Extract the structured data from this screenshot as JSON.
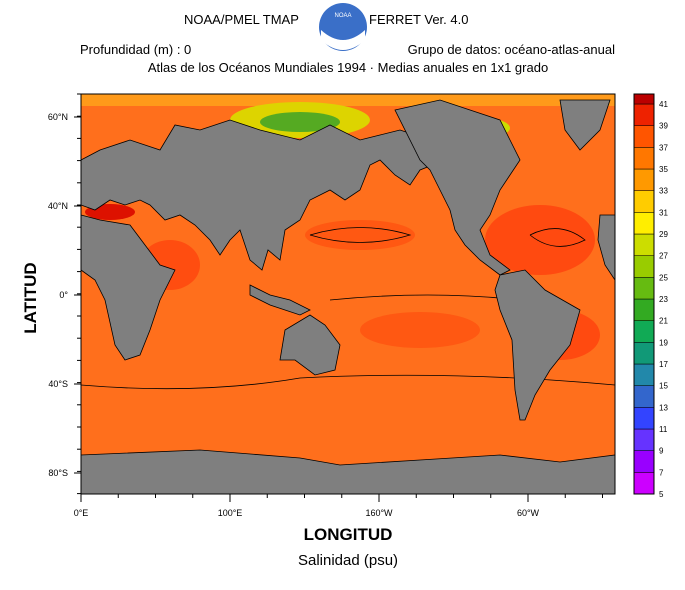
{
  "header": {
    "left": "NOAA/PMEL TMAP",
    "logo": "NOAA",
    "right": "FERRET Ver. 4.0",
    "depth": "Profundidad (m) : 0",
    "dataset": "Grupo de datos:  océano-atlas-anual",
    "subtitle": "Atlas de los Océanos Mundiales 1994 · Medias anuales en 1x1 grado"
  },
  "map": {
    "y_label": "LATITUD",
    "x_label": "LONGITUD",
    "variable": "Salinidad (psu)",
    "lat_ticks": [
      "60°N",
      "40°N",
      "0°",
      "40°S",
      "80°S"
    ],
    "lon_ticks": [
      "0°E",
      "100°E",
      "160°W",
      "60°W"
    ]
  },
  "colorbar": {
    "levels": [
      5,
      7,
      9,
      11,
      13,
      15,
      17,
      19,
      21,
      23,
      25,
      27,
      29,
      31,
      33,
      35,
      37,
      39,
      41
    ],
    "colors": [
      "#cc00ff",
      "#9900ff",
      "#6633ff",
      "#3344ff",
      "#3366cc",
      "#2288aa",
      "#119977",
      "#11aa55",
      "#33aa22",
      "#66bb11",
      "#99cc00",
      "#ccdd00",
      "#ffee00",
      "#ffcc00",
      "#ff9900",
      "#ff7700",
      "#ff5500",
      "#ee2200",
      "#bb0000"
    ]
  }
}
